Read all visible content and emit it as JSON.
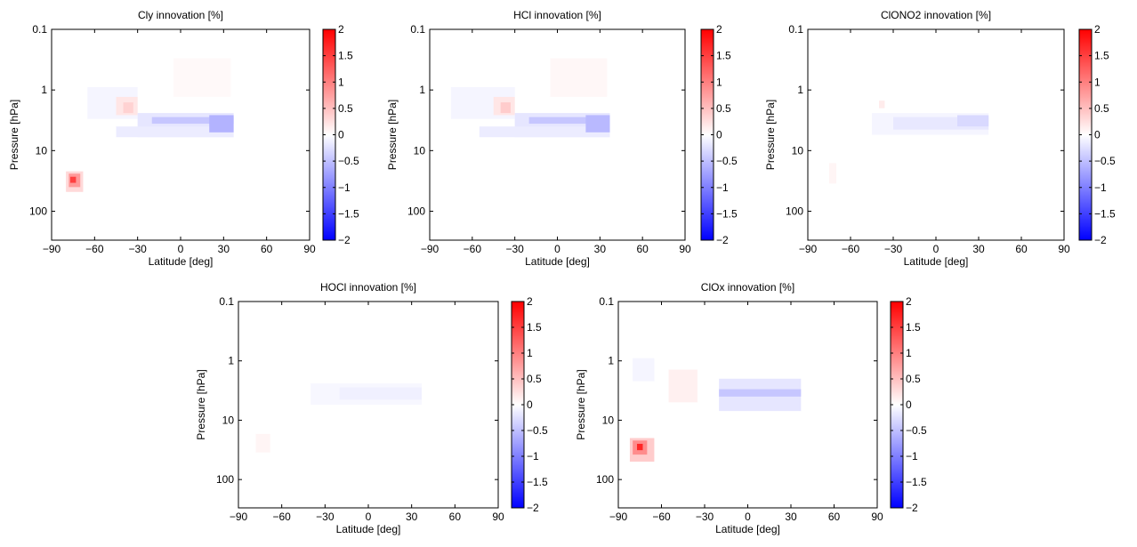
{
  "chart_data": [
    {
      "type": "heatmap",
      "title": "Cly innovation [%]",
      "xlabel": "Latitude [deg]",
      "ylabel": "Pressure [hPa]",
      "xlim": [
        -90,
        90
      ],
      "ylim": [
        0.1,
        300
      ],
      "yscale": "log",
      "xticks": [
        -90,
        -60,
        -30,
        0,
        30,
        60,
        90
      ],
      "xtick_labels": [
        "−90",
        "−60",
        "−30",
        "0",
        "30",
        "60",
        "90"
      ],
      "yticks": [
        0.1,
        1,
        10,
        100
      ],
      "ytick_labels": [
        "0.1",
        "1",
        "10",
        "100"
      ],
      "clim": [
        -2,
        2
      ],
      "colorbar_ticks": [
        2,
        1.5,
        1,
        0.5,
        0,
        -0.5,
        -1,
        -1.5,
        -2
      ],
      "colorbar_tick_labels": [
        "2",
        "1.5",
        "1",
        "0.5",
        "0",
        "−0.5",
        "−1",
        "−1.5",
        "−2"
      ],
      "colormap": {
        "low": "#0000ff",
        "mid": "#ffffff",
        "high": "#ff0000"
      },
      "cells": [
        {
          "lat": [
            -65,
            -30
          ],
          "p": [
            0.9,
            3.0
          ],
          "value": -0.08
        },
        {
          "lat": [
            -5,
            35
          ],
          "p": [
            0.3,
            1.3
          ],
          "value": 0.05
        },
        {
          "lat": [
            -45,
            -30
          ],
          "p": [
            1.3,
            2.6
          ],
          "value": 0.2
        },
        {
          "lat": [
            -40,
            -33
          ],
          "p": [
            1.6,
            2.4
          ],
          "value": 0.35
        },
        {
          "lat": [
            -30,
            37
          ],
          "p": [
            2.4,
            6.0
          ],
          "value": -0.2
        },
        {
          "lat": [
            -45,
            37
          ],
          "p": [
            4.0,
            6.0
          ],
          "value": -0.15
        },
        {
          "lat": [
            -20,
            37
          ],
          "p": [
            2.8,
            3.6
          ],
          "value": -0.45
        },
        {
          "lat": [
            20,
            37
          ],
          "p": [
            2.6,
            5.0
          ],
          "value": -0.6
        },
        {
          "lat": [
            -80,
            -68
          ],
          "p": [
            22,
            48
          ],
          "value": 0.3
        },
        {
          "lat": [
            -78,
            -70
          ],
          "p": [
            24,
            40
          ],
          "value": 0.8
        },
        {
          "lat": [
            -77,
            -73
          ],
          "p": [
            27,
            34
          ],
          "value": 1.5
        }
      ]
    },
    {
      "type": "heatmap",
      "title": "HCl innovation [%]",
      "xlabel": "Latitude [deg]",
      "ylabel": "Pressure [hPa]",
      "xlim": [
        -90,
        90
      ],
      "ylim": [
        0.1,
        300
      ],
      "yscale": "log",
      "xticks": [
        -90,
        -60,
        -30,
        0,
        30,
        60,
        90
      ],
      "xtick_labels": [
        "−90",
        "−60",
        "−30",
        "0",
        "30",
        "60",
        "90"
      ],
      "yticks": [
        0.1,
        1,
        10,
        100
      ],
      "ytick_labels": [
        "0.1",
        "1",
        "10",
        "100"
      ],
      "clim": [
        -2,
        2
      ],
      "colorbar_ticks": [
        2,
        1.5,
        1,
        0.5,
        0,
        -0.5,
        -1,
        -1.5,
        -2
      ],
      "colorbar_tick_labels": [
        "2",
        "1.5",
        "1",
        "0.5",
        "0",
        "−0.5",
        "−1",
        "−1.5",
        "−2"
      ],
      "colormap": {
        "low": "#0000ff",
        "mid": "#ffffff",
        "high": "#ff0000"
      },
      "cells": [
        {
          "lat": [
            -75,
            -30
          ],
          "p": [
            0.9,
            3.0
          ],
          "value": -0.08
        },
        {
          "lat": [
            -5,
            35
          ],
          "p": [
            0.3,
            1.3
          ],
          "value": 0.06
        },
        {
          "lat": [
            -45,
            -30
          ],
          "p": [
            1.3,
            2.6
          ],
          "value": 0.2
        },
        {
          "lat": [
            -40,
            -33
          ],
          "p": [
            1.6,
            2.4
          ],
          "value": 0.4
        },
        {
          "lat": [
            -30,
            37
          ],
          "p": [
            2.4,
            6.0
          ],
          "value": -0.2
        },
        {
          "lat": [
            -55,
            37
          ],
          "p": [
            4.0,
            6.0
          ],
          "value": -0.15
        },
        {
          "lat": [
            -20,
            37
          ],
          "p": [
            2.8,
            3.6
          ],
          "value": -0.45
        },
        {
          "lat": [
            20,
            37
          ],
          "p": [
            2.6,
            5.0
          ],
          "value": -0.55
        }
      ]
    },
    {
      "type": "heatmap",
      "title": "ClONO2 innovation [%]",
      "xlabel": "Latitude [deg]",
      "ylabel": "Pressure [hPa]",
      "xlim": [
        -90,
        90
      ],
      "ylim": [
        0.1,
        300
      ],
      "yscale": "log",
      "xticks": [
        -90,
        -60,
        -30,
        0,
        30,
        60,
        90
      ],
      "xtick_labels": [
        "−90",
        "−60",
        "−30",
        "0",
        "30",
        "60",
        "90"
      ],
      "yticks": [
        0.1,
        1,
        10,
        100
      ],
      "ytick_labels": [
        "0.1",
        "1",
        "10",
        "100"
      ],
      "clim": [
        -2,
        2
      ],
      "colorbar_ticks": [
        2,
        1.5,
        1,
        0.5,
        0,
        -0.5,
        -1,
        -1.5,
        -2
      ],
      "colorbar_tick_labels": [
        "2",
        "1.5",
        "1",
        "0.5",
        "0",
        "−0.5",
        "−1",
        "−1.5",
        "−2"
      ],
      "colormap": {
        "low": "#0000ff",
        "mid": "#ffffff",
        "high": "#ff0000"
      },
      "cells": [
        {
          "lat": [
            -45,
            37
          ],
          "p": [
            2.4,
            5.5
          ],
          "value": -0.08
        },
        {
          "lat": [
            -30,
            37
          ],
          "p": [
            2.8,
            4.5
          ],
          "value": -0.18
        },
        {
          "lat": [
            15,
            37
          ],
          "p": [
            2.6,
            4.0
          ],
          "value": -0.3
        },
        {
          "lat": [
            -40,
            -36
          ],
          "p": [
            1.5,
            2.0
          ],
          "value": 0.15
        },
        {
          "lat": [
            -75,
            -70
          ],
          "p": [
            16,
            35
          ],
          "value": 0.08
        }
      ]
    },
    {
      "type": "heatmap",
      "title": "HOCl innovation [%]",
      "xlabel": "Latitude [deg]",
      "ylabel": "Pressure [hPa]",
      "xlim": [
        -90,
        90
      ],
      "ylim": [
        0.1,
        300
      ],
      "yscale": "log",
      "xticks": [
        -90,
        -60,
        -30,
        0,
        30,
        60,
        90
      ],
      "xtick_labels": [
        "−90",
        "−60",
        "−30",
        "0",
        "30",
        "60",
        "90"
      ],
      "yticks": [
        0.1,
        1,
        10,
        100
      ],
      "ytick_labels": [
        "0.1",
        "1",
        "10",
        "100"
      ],
      "clim": [
        -2,
        2
      ],
      "colorbar_ticks": [
        2,
        1.5,
        1,
        0.5,
        0,
        -0.5,
        -1,
        -1.5,
        -2
      ],
      "colorbar_tick_labels": [
        "2",
        "1.5",
        "1",
        "0.5",
        "0",
        "−0.5",
        "−1",
        "−1.5",
        "−2"
      ],
      "colormap": {
        "low": "#0000ff",
        "mid": "#ffffff",
        "high": "#ff0000"
      },
      "cells": [
        {
          "lat": [
            -40,
            37
          ],
          "p": [
            2.4,
            5.5
          ],
          "value": -0.06
        },
        {
          "lat": [
            -20,
            37
          ],
          "p": [
            2.8,
            4.5
          ],
          "value": -0.12
        },
        {
          "lat": [
            -78,
            -68
          ],
          "p": [
            17,
            35
          ],
          "value": 0.08
        }
      ]
    },
    {
      "type": "heatmap",
      "title": "ClOx innovation [%]",
      "xlabel": "Latitude [deg]",
      "ylabel": "Pressure [hPa]",
      "xlim": [
        -90,
        90
      ],
      "ylim": [
        0.1,
        300
      ],
      "yscale": "log",
      "xticks": [
        -90,
        -60,
        -30,
        0,
        30,
        60,
        90
      ],
      "xtick_labels": [
        "−90",
        "−60",
        "−30",
        "0",
        "30",
        "60",
        "90"
      ],
      "yticks": [
        0.1,
        1,
        10,
        100
      ],
      "ytick_labels": [
        "0.1",
        "1",
        "10",
        "100"
      ],
      "clim": [
        -2,
        2
      ],
      "colorbar_ticks": [
        2,
        1.5,
        1,
        0.5,
        0,
        -0.5,
        -1,
        -1.5,
        -2
      ],
      "colorbar_tick_labels": [
        "2",
        "1.5",
        "1",
        "0.5",
        "0",
        "−0.5",
        "−1",
        "−1.5",
        "−2"
      ],
      "colormap": {
        "low": "#0000ff",
        "mid": "#ffffff",
        "high": "#ff0000"
      },
      "cells": [
        {
          "lat": [
            -80,
            -65
          ],
          "p": [
            0.9,
            2.2
          ],
          "value": -0.08
        },
        {
          "lat": [
            -55,
            -35
          ],
          "p": [
            1.4,
            5.0
          ],
          "value": 0.12
        },
        {
          "lat": [
            -20,
            37
          ],
          "p": [
            2.0,
            7.0
          ],
          "value": -0.2
        },
        {
          "lat": [
            -20,
            37
          ],
          "p": [
            3.0,
            4.0
          ],
          "value": -0.45
        },
        {
          "lat": [
            -82,
            -65
          ],
          "p": [
            20,
            50
          ],
          "value": 0.4
        },
        {
          "lat": [
            -80,
            -70
          ],
          "p": [
            22,
            38
          ],
          "value": 0.9
        },
        {
          "lat": [
            -77,
            -73
          ],
          "p": [
            25,
            32
          ],
          "value": 1.7
        }
      ]
    }
  ]
}
